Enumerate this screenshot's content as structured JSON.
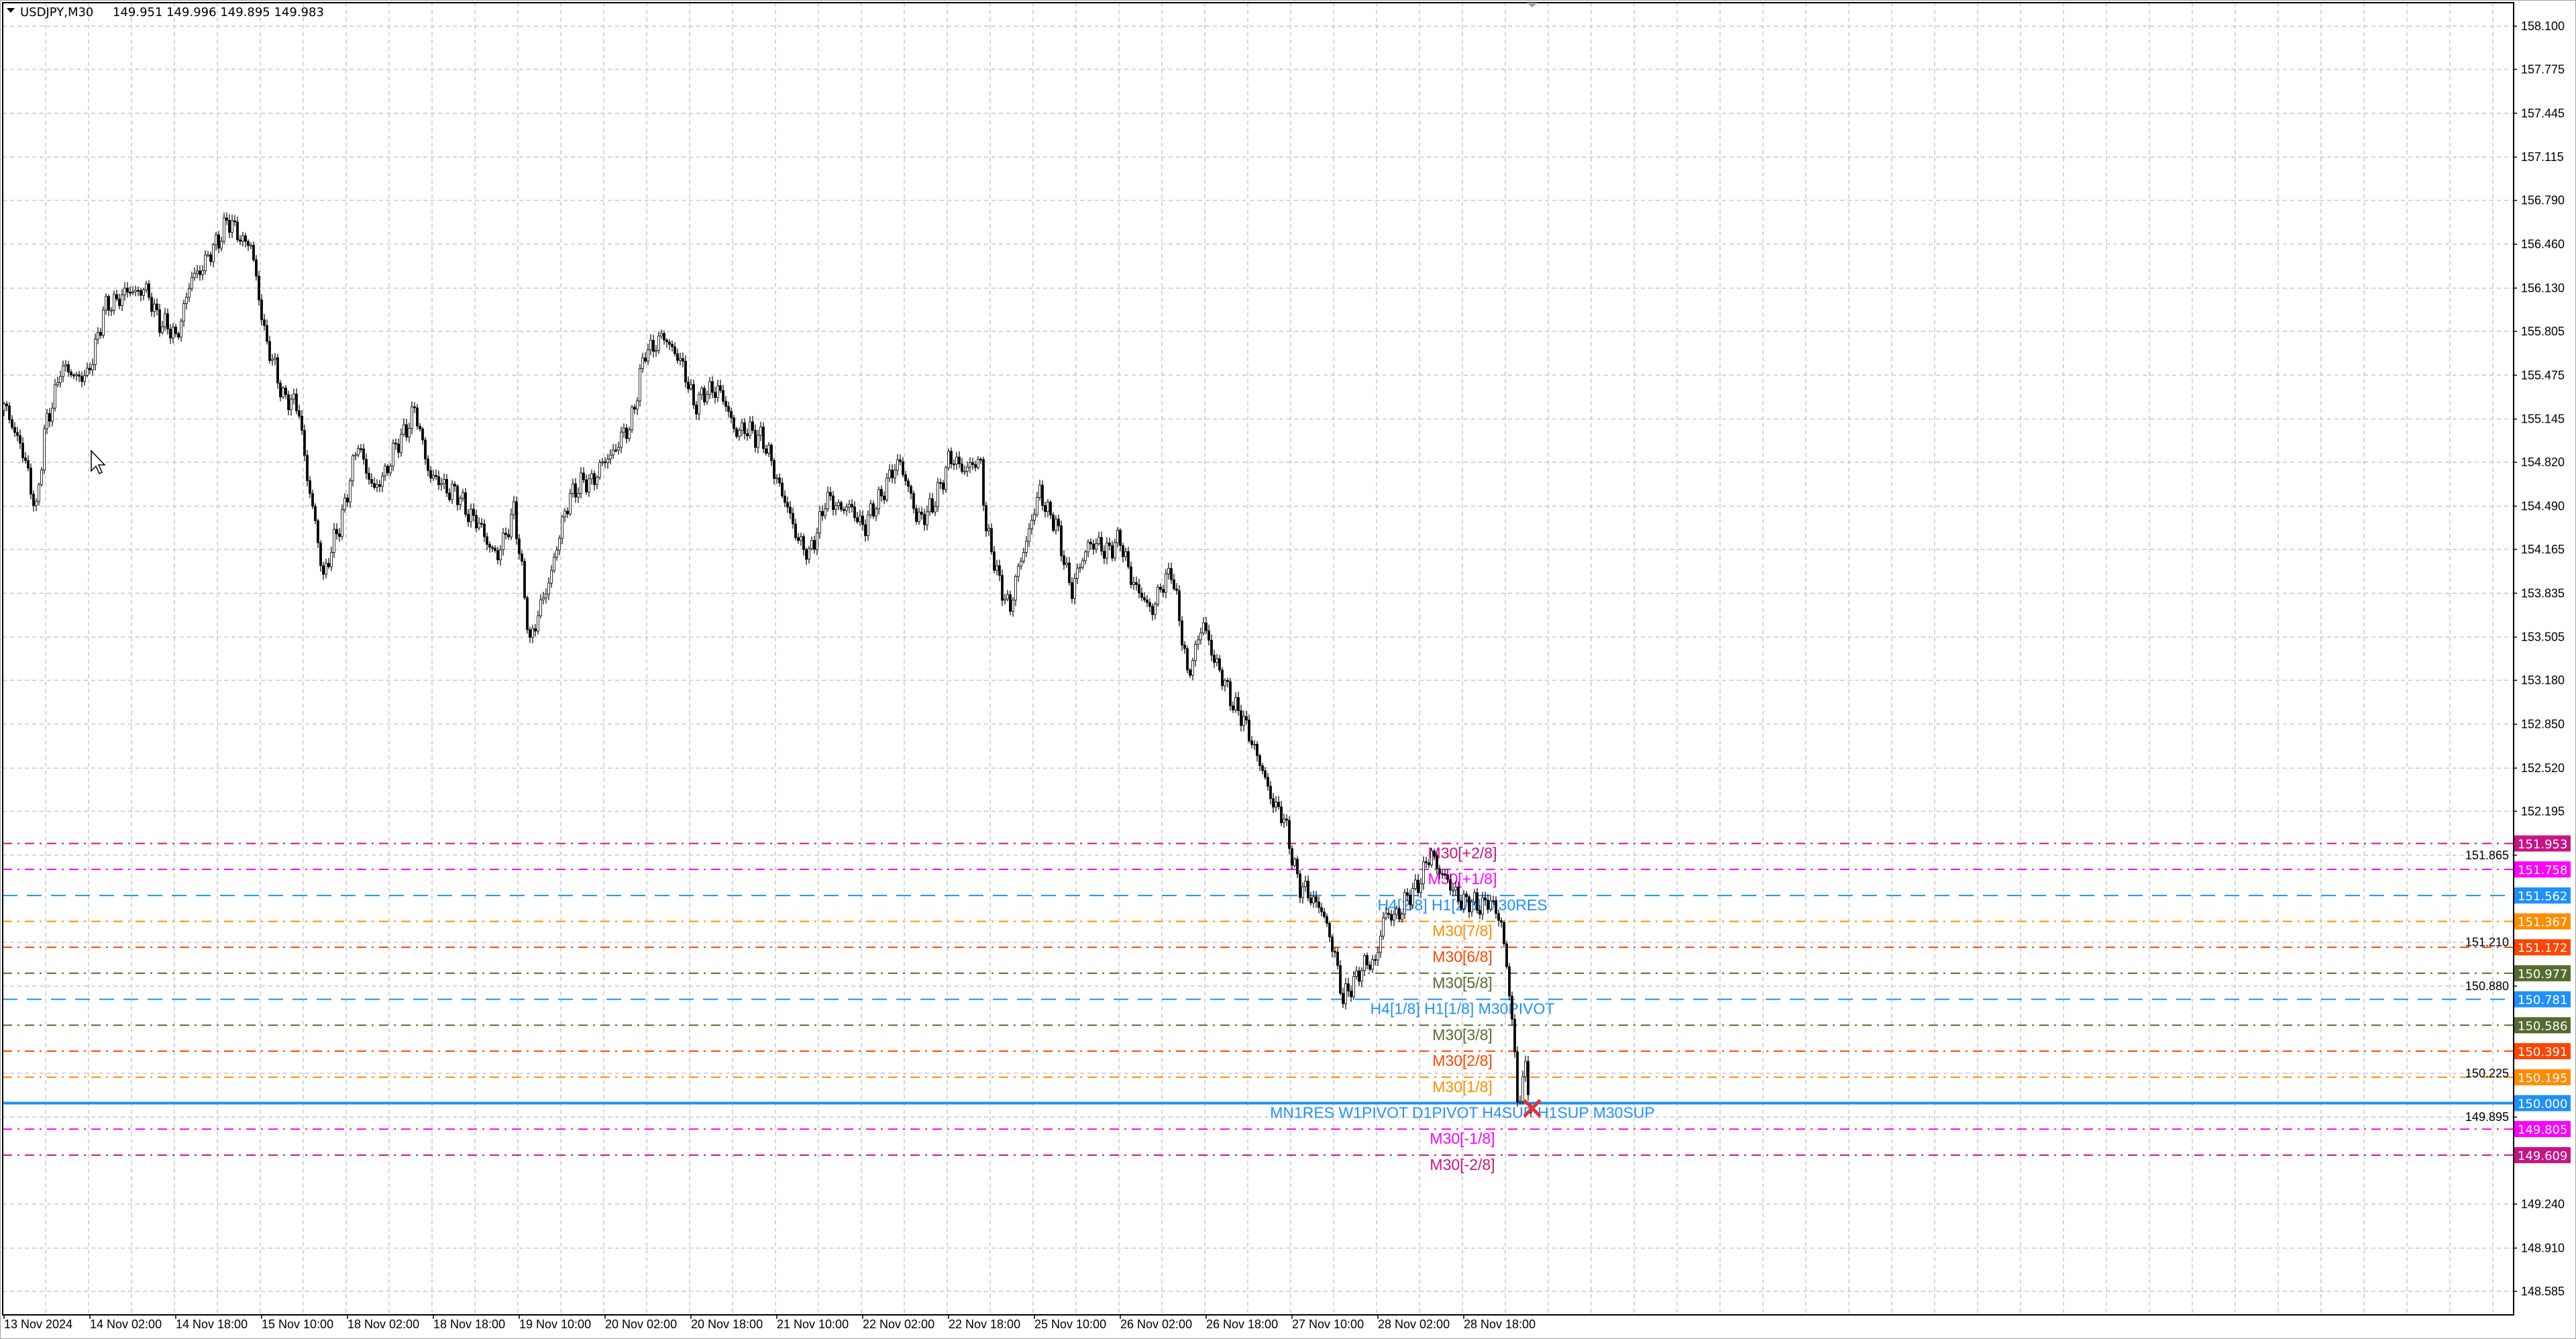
{
  "header": {
    "symbol_timeframe": "USDJPY,M30",
    "ohlc": "149.951 149.996 149.895 149.983"
  },
  "colors": {
    "background": "#ffffff",
    "grid": "#c8c8c8",
    "bull_body": "#ffffff",
    "bear_body": "#000000",
    "candle_outline": "#000000",
    "close_marker": "#e8312f"
  },
  "chart_data": {
    "type": "candlestick",
    "symbol": "USDJPY",
    "timeframe": "M30",
    "last_bar": {
      "open": 149.951,
      "high": 149.996,
      "low": 149.895,
      "close": 149.983
    },
    "ylim": [
      148.4,
      158.3
    ],
    "grid": true,
    "price_ticks": [
      "158.100",
      "157.775",
      "157.445",
      "157.115",
      "156.790",
      "156.460",
      "156.130",
      "155.805",
      "155.475",
      "155.145",
      "154.820",
      "154.490",
      "154.165",
      "153.835",
      "153.505",
      "153.180",
      "152.850",
      "152.520",
      "152.195",
      "151.865",
      "151.210",
      "150.880",
      "150.225",
      "149.895",
      "149.240",
      "148.910",
      "148.585"
    ],
    "time_labels": [
      "13 Nov 2024",
      "14 Nov 02:00",
      "14 Nov 18:00",
      "15 Nov 10:00",
      "18 Nov 02:00",
      "18 Nov 18:00",
      "19 Nov 10:00",
      "20 Nov 02:00",
      "20 Nov 18:00",
      "21 Nov 10:00",
      "22 Nov 02:00",
      "22 Nov 18:00",
      "25 Nov 10:00",
      "26 Nov 02:00",
      "26 Nov 18:00",
      "27 Nov 10:00",
      "28 Nov 02:00",
      "28 Nov 18:00"
    ],
    "bars_per_time_label": 32,
    "approx_close_path": [
      [
        1,
        155.21
      ],
      [
        6,
        154.96
      ],
      [
        12,
        154.47
      ],
      [
        15,
        155.02
      ],
      [
        21,
        155.52
      ],
      [
        31,
        155.45
      ],
      [
        37,
        155.95
      ],
      [
        43,
        156.07
      ],
      [
        52,
        156.13
      ],
      [
        58,
        155.89
      ],
      [
        64,
        155.76
      ],
      [
        70,
        156.2
      ],
      [
        77,
        156.38
      ],
      [
        83,
        156.63
      ],
      [
        92,
        156.44
      ],
      [
        98,
        155.7
      ],
      [
        104,
        155.33
      ],
      [
        110,
        155.21
      ],
      [
        113,
        154.71
      ],
      [
        119,
        153.97
      ],
      [
        125,
        154.34
      ],
      [
        132,
        154.96
      ],
      [
        138,
        154.59
      ],
      [
        144,
        154.84
      ],
      [
        153,
        155.21
      ],
      [
        159,
        154.71
      ],
      [
        168,
        154.59
      ],
      [
        177,
        154.34
      ],
      [
        184,
        154.1
      ],
      [
        190,
        154.47
      ],
      [
        196,
        153.48
      ],
      [
        202,
        153.85
      ],
      [
        211,
        154.59
      ],
      [
        220,
        154.71
      ],
      [
        233,
        155.08
      ],
      [
        239,
        155.64
      ],
      [
        245,
        155.76
      ],
      [
        251,
        155.64
      ],
      [
        257,
        155.27
      ],
      [
        266,
        155.39
      ],
      [
        272,
        155.08
      ],
      [
        282,
        155.02
      ],
      [
        288,
        154.71
      ],
      [
        294,
        154.34
      ],
      [
        300,
        154.1
      ],
      [
        306,
        154.53
      ],
      [
        315,
        154.47
      ],
      [
        321,
        154.34
      ],
      [
        327,
        154.59
      ],
      [
        334,
        154.84
      ],
      [
        340,
        154.4
      ],
      [
        346,
        154.47
      ],
      [
        352,
        154.84
      ],
      [
        358,
        154.78
      ],
      [
        364,
        154.81
      ],
      [
        366,
        154.34
      ],
      [
        370,
        153.97
      ],
      [
        375,
        153.72
      ],
      [
        379,
        154.1
      ],
      [
        386,
        154.59
      ],
      [
        392,
        154.34
      ],
      [
        398,
        153.85
      ],
      [
        404,
        154.22
      ],
      [
        410,
        154.16
      ],
      [
        416,
        154.22
      ],
      [
        422,
        153.85
      ],
      [
        428,
        153.72
      ],
      [
        435,
        154.03
      ],
      [
        441,
        153.23
      ],
      [
        447,
        153.6
      ],
      [
        453,
        153.23
      ],
      [
        459,
        152.98
      ],
      [
        465,
        152.74
      ],
      [
        471,
        152.36
      ],
      [
        477,
        152.12
      ],
      [
        483,
        151.62
      ],
      [
        490,
        151.5
      ],
      [
        496,
        151.13
      ],
      [
        499,
        150.76
      ],
      [
        505,
        151.0
      ],
      [
        511,
        151.07
      ],
      [
        514,
        151.38
      ],
      [
        520,
        151.44
      ],
      [
        526,
        151.62
      ],
      [
        532,
        151.87
      ],
      [
        539,
        151.62
      ],
      [
        545,
        151.5
      ],
      [
        554,
        151.5
      ],
      [
        558,
        151.38
      ],
      [
        562,
        150.63
      ],
      [
        564,
        150.02
      ],
      [
        567,
        150.26
      ],
      [
        569,
        149.983
      ]
    ],
    "levels": [
      {
        "price": 151.953,
        "tag": "151.953",
        "label": "M30[+2/8]",
        "color": "#c71585",
        "style": "dashdot"
      },
      {
        "price": 151.758,
        "tag": "151.758",
        "label": "M30[+1/8]",
        "color": "#ff00ff",
        "style": "dashdot"
      },
      {
        "price": 151.562,
        "tag": "151.562",
        "label": "H4[2/8] H1[2/8] M30RES",
        "color": "#1e90ff",
        "style": "dash"
      },
      {
        "price": 151.367,
        "tag": "151.367",
        "label": "M30[7/8]",
        "color": "#ff8c00",
        "style": "dashdot"
      },
      {
        "price": 151.172,
        "tag": "151.172",
        "label": "M30[6/8]",
        "color": "#ff4500",
        "style": "dashdot"
      },
      {
        "price": 150.977,
        "tag": "150.977",
        "label": "M30[5/8]",
        "color": "#556b2f",
        "style": "dashdot"
      },
      {
        "price": 150.781,
        "tag": "150.781",
        "label": "H4[1/8] H1[1/8] M30PIVOT",
        "color": "#1e90ff",
        "style": "dash"
      },
      {
        "price": 150.586,
        "tag": "150.586",
        "label": "M30[3/8]",
        "color": "#556b2f",
        "style": "dashdot"
      },
      {
        "price": 150.391,
        "tag": "150.391",
        "label": "M30[2/8]",
        "color": "#ff4500",
        "style": "dashdot"
      },
      {
        "price": 150.195,
        "tag": "150.195",
        "label": "M30[1/8]",
        "color": "#ff8c00",
        "style": "dashdot"
      },
      {
        "price": 150.0,
        "tag": "150.000",
        "label": "MN1RES W1PIVOT D1PIVOT H4SUP H1SUP M30SUP",
        "color": "#1e90ff",
        "style": "solid"
      },
      {
        "price": 149.805,
        "tag": "149.805",
        "label": "M30[-1/8]",
        "color": "#ff00ff",
        "style": "dashdot"
      },
      {
        "price": 149.609,
        "tag": "149.609",
        "label": "M30[-2/8]",
        "color": "#c71585",
        "style": "dashdot"
      }
    ]
  }
}
